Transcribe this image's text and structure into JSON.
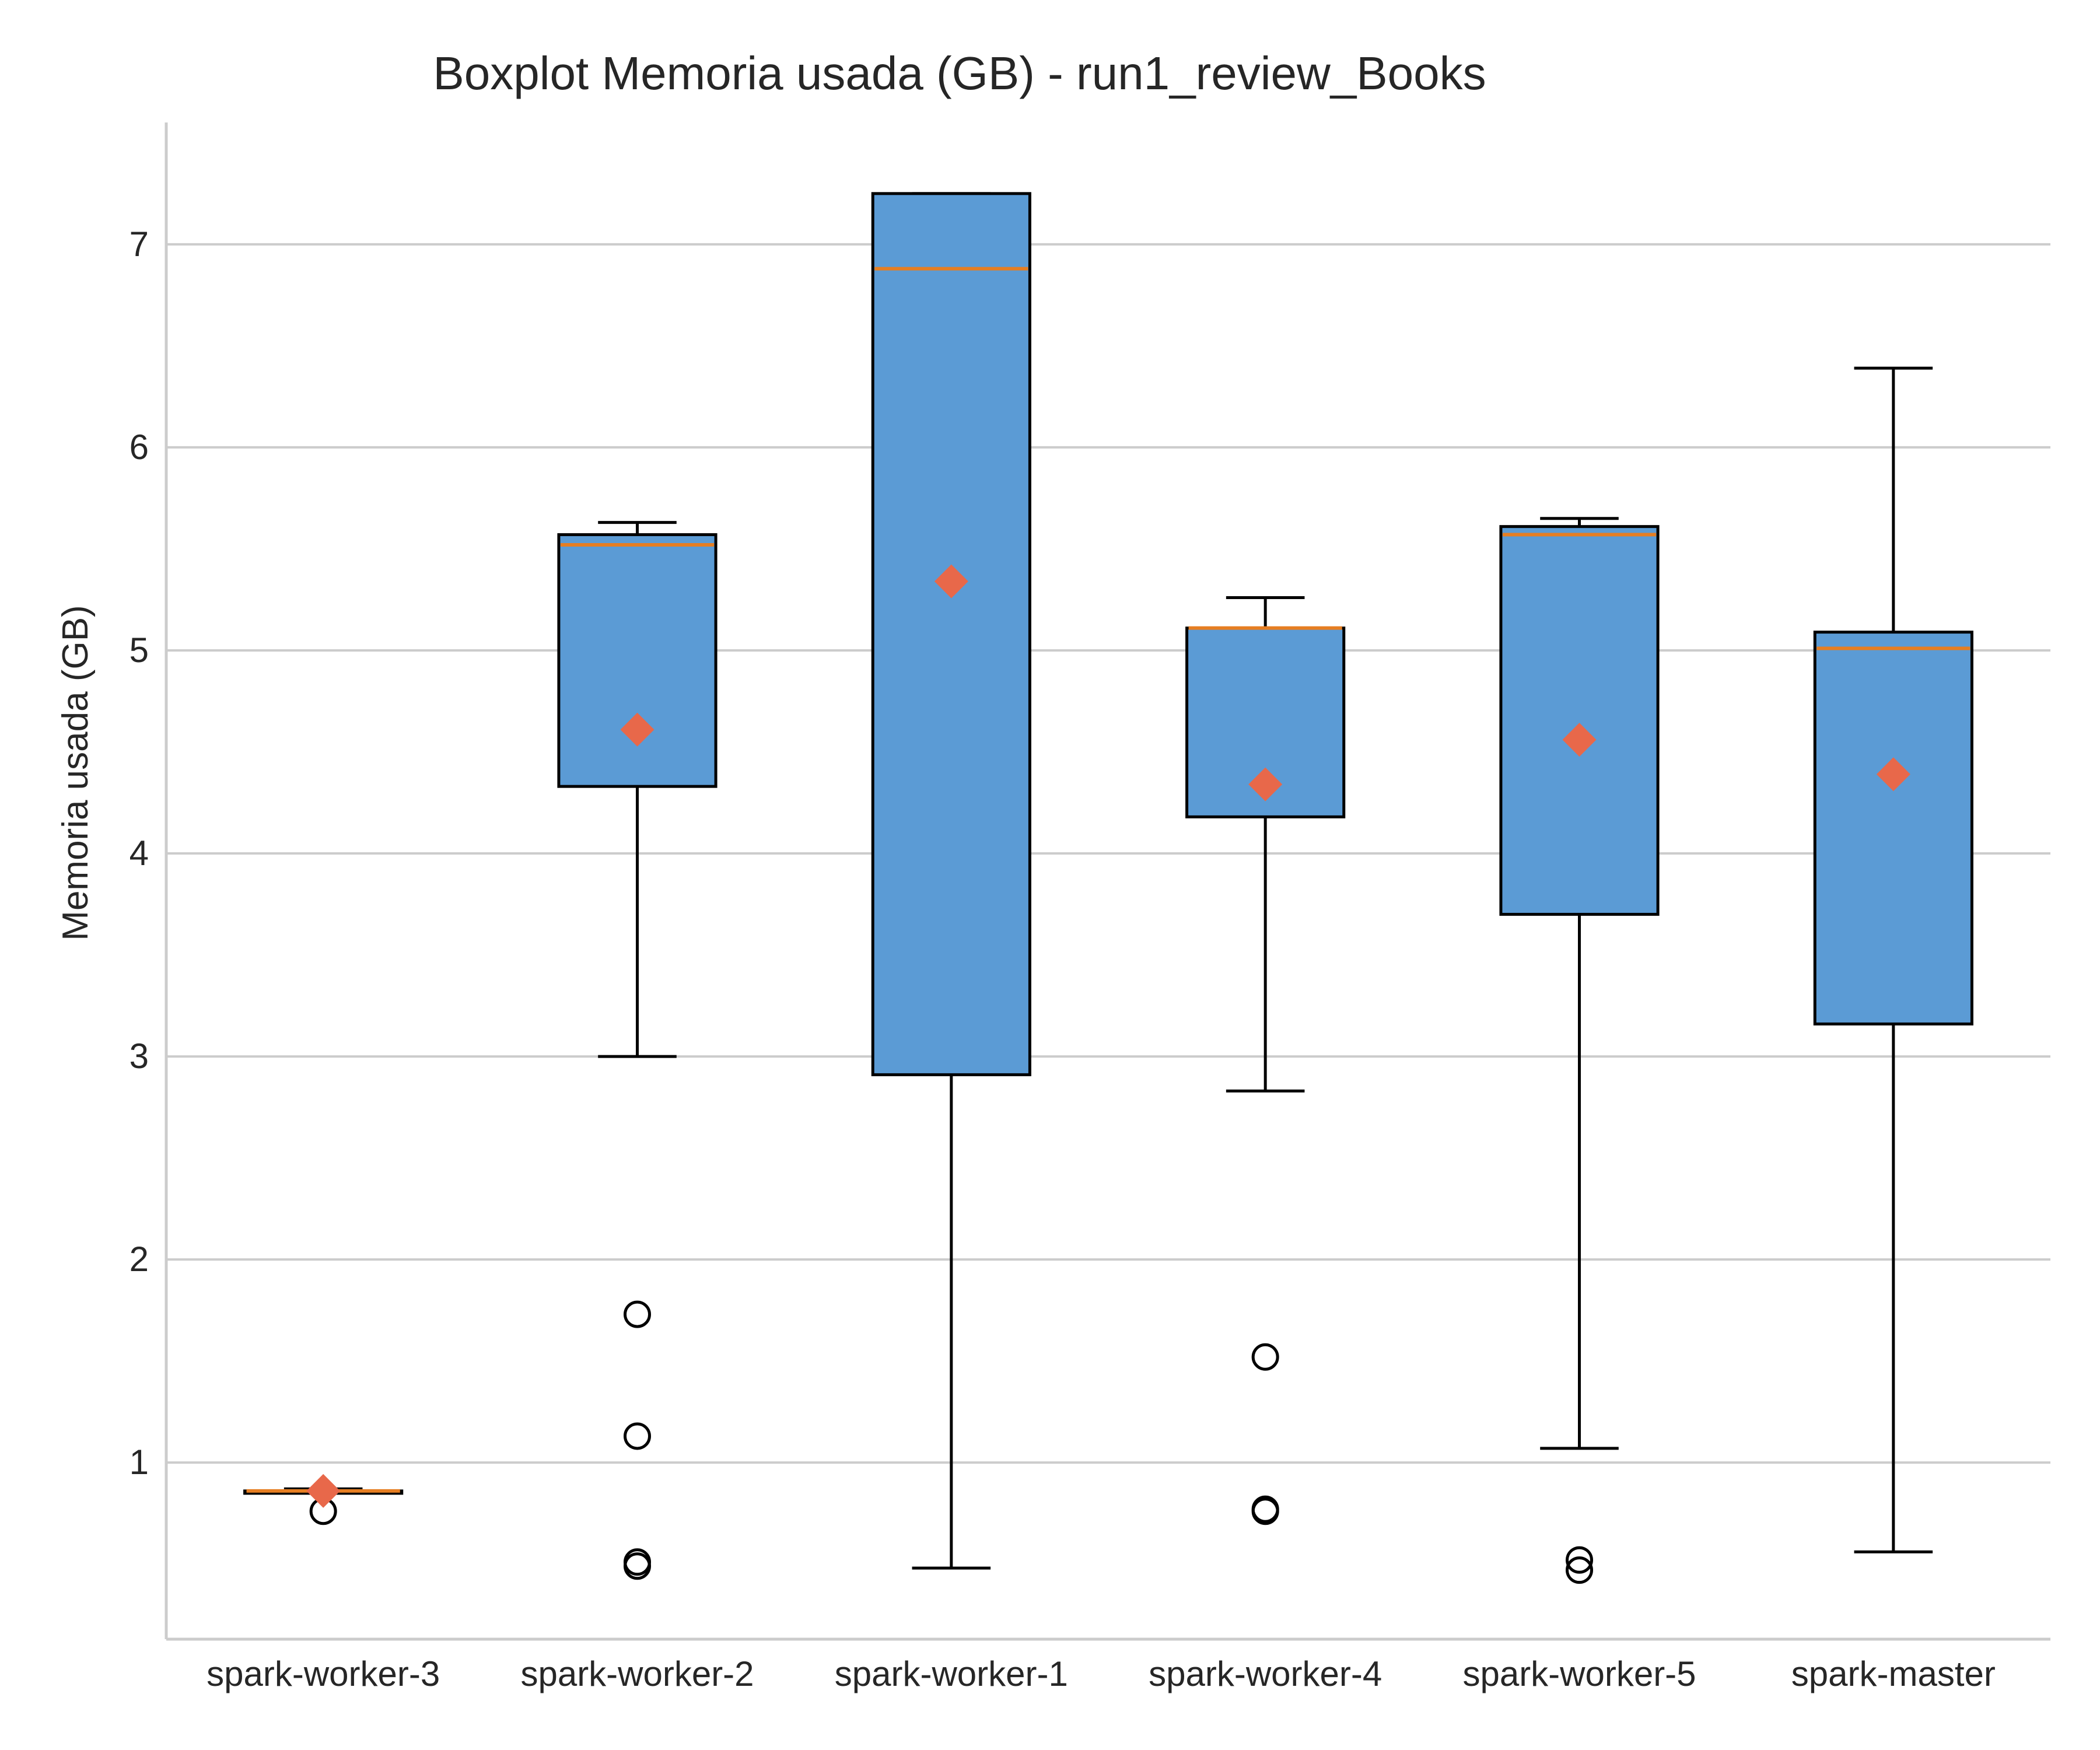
{
  "chart_data": {
    "type": "boxplot",
    "title": "Boxplot Memoria usada (GB) - run1_review_Books",
    "xlabel": "",
    "ylabel": "Memoria usada (GB)",
    "ylim": [
      0.13,
      7.6
    ],
    "yticks": [
      1,
      2,
      3,
      4,
      5,
      6,
      7
    ],
    "grid": "horizontal",
    "categories": [
      "spark-worker-3",
      "spark-worker-2",
      "spark-worker-1",
      "spark-worker-4",
      "spark-worker-5",
      "spark-master"
    ],
    "boxes": [
      {
        "whisker_low": 0.85,
        "q1": 0.85,
        "median": 0.86,
        "q3": 0.86,
        "whisker_high": 0.87,
        "mean": 0.86,
        "outliers": [
          0.76
        ]
      },
      {
        "whisker_low": 3.0,
        "q1": 4.33,
        "median": 5.52,
        "q3": 5.57,
        "whisker_high": 5.63,
        "mean": 4.61,
        "outliers": [
          1.73,
          1.13,
          0.51,
          0.49
        ]
      },
      {
        "whisker_low": 0.48,
        "q1": 2.91,
        "median": 6.88,
        "q3": 7.25,
        "whisker_high": 7.25,
        "mean": 5.34,
        "outliers": []
      },
      {
        "whisker_low": 2.83,
        "q1": 4.18,
        "median": 5.11,
        "q3": 5.11,
        "whisker_high": 5.26,
        "mean": 4.34,
        "outliers": [
          1.52,
          0.77,
          0.76
        ]
      },
      {
        "whisker_low": 1.07,
        "q1": 3.7,
        "median": 5.57,
        "q3": 5.61,
        "whisker_high": 5.65,
        "mean": 4.56,
        "outliers": [
          0.52,
          0.47
        ]
      },
      {
        "whisker_low": 0.56,
        "q1": 3.16,
        "median": 5.01,
        "q3": 5.09,
        "whisker_high": 6.39,
        "mean": 4.39,
        "outliers": []
      }
    ]
  },
  "colors": {
    "box_fill": "#5b9bd5",
    "median": "#e67e22",
    "mean_marker": "#e8684a",
    "box_edge": "#000000",
    "grid": "#cccccc",
    "axis": "#cccccc",
    "text": "#262626"
  }
}
